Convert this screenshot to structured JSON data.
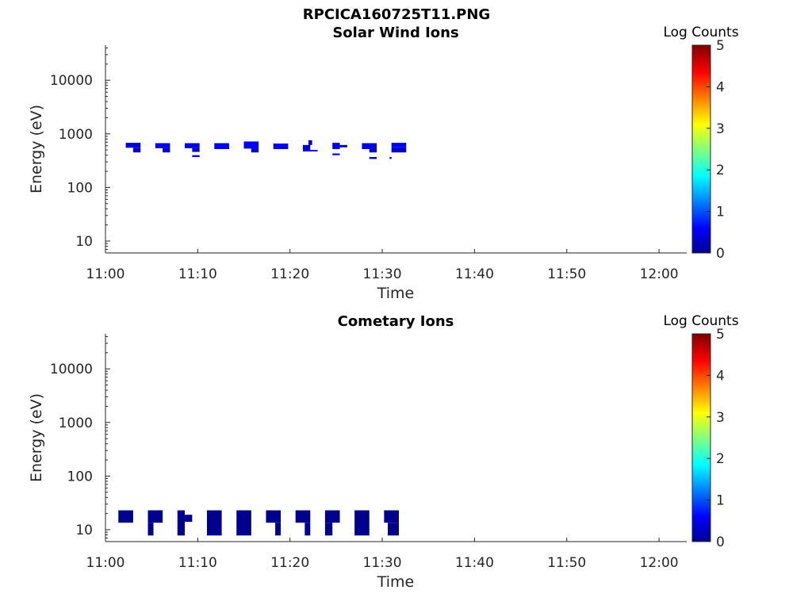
{
  "figure_title": "RPCICA160725T11.PNG",
  "colormap": [
    "#00008f",
    "#0000ff",
    "#00ffff",
    "#ffff00",
    "#ff0000",
    "#800000"
  ],
  "chart_data": [
    {
      "type": "heatmap",
      "title": "Solar Wind Ions",
      "xlabel": "Time",
      "ylabel": "Energy (eV)",
      "y_scale": "log",
      "xlim": [
        "11:00",
        "12:03"
      ],
      "ylim": [
        6,
        45000
      ],
      "x_ticks": [
        "11:00",
        "11:10",
        "11:20",
        "11:30",
        "11:40",
        "11:50",
        "12:00"
      ],
      "y_ticks": [
        "10",
        "100",
        "1000",
        "10000"
      ],
      "colorbar": {
        "label": "Log Counts",
        "range": [
          0,
          5
        ],
        "ticks": [
          "0",
          "1",
          "2",
          "3",
          "4",
          "5"
        ]
      },
      "cells": [
        {
          "t0": "11:02.2",
          "t1": "11:03.8",
          "e0": 550,
          "e1": 680,
          "level": 0.7
        },
        {
          "t0": "11:03.0",
          "t1": "11:03.8",
          "e0": 450,
          "e1": 550,
          "level": 0.6
        },
        {
          "t0": "11:05.4",
          "t1": "11:07.0",
          "e0": 540,
          "e1": 670,
          "level": 0.8
        },
        {
          "t0": "11:06.2",
          "t1": "11:07.0",
          "e0": 450,
          "e1": 540,
          "level": 0.6
        },
        {
          "t0": "11:08.6",
          "t1": "11:10.2",
          "e0": 540,
          "e1": 670,
          "level": 0.7
        },
        {
          "t0": "11:09.4",
          "t1": "11:10.2",
          "e0": 460,
          "e1": 540,
          "level": 0.6
        },
        {
          "t0": "11:09.4",
          "t1": "11:10.2",
          "e0": 370,
          "e1": 400,
          "level": 0.5
        },
        {
          "t0": "11:11.8",
          "t1": "11:13.4",
          "e0": 520,
          "e1": 670,
          "level": 0.9
        },
        {
          "t0": "11:15.0",
          "t1": "11:16.6",
          "e0": 530,
          "e1": 720,
          "level": 0.9
        },
        {
          "t0": "11:15.8",
          "t1": "11:16.6",
          "e0": 450,
          "e1": 530,
          "level": 0.6
        },
        {
          "t0": "11:18.2",
          "t1": "11:19.8",
          "e0": 520,
          "e1": 660,
          "level": 0.8
        },
        {
          "t0": "11:21.4",
          "t1": "11:22.2",
          "e0": 500,
          "e1": 620,
          "level": 0.6
        },
        {
          "t0": "11:22.0",
          "t1": "11:22.4",
          "e0": 620,
          "e1": 760,
          "level": 0.6
        },
        {
          "t0": "11:21.4",
          "t1": "11:23.0",
          "e0": 470,
          "e1": 500,
          "level": 0.5
        },
        {
          "t0": "11:24.6",
          "t1": "11:25.4",
          "e0": 520,
          "e1": 680,
          "level": 0.7
        },
        {
          "t0": "11:25.4",
          "t1": "11:26.2",
          "e0": 560,
          "e1": 620,
          "level": 0.6
        },
        {
          "t0": "11:24.6",
          "t1": "11:25.4",
          "e0": 400,
          "e1": 430,
          "level": 0.5
        },
        {
          "t0": "11:27.8",
          "t1": "11:29.4",
          "e0": 520,
          "e1": 670,
          "level": 0.7
        },
        {
          "t0": "11:28.6",
          "t1": "11:29.4",
          "e0": 450,
          "e1": 520,
          "level": 0.6
        },
        {
          "t0": "11:28.6",
          "t1": "11:29.4",
          "e0": 340,
          "e1": 370,
          "level": 0.5
        },
        {
          "t0": "11:31.0",
          "t1": "11:32.6",
          "e0": 560,
          "e1": 680,
          "level": 0.8
        },
        {
          "t0": "11:31.0",
          "t1": "11:32.6",
          "e0": 450,
          "e1": 560,
          "level": 0.6
        },
        {
          "t0": "11:30.8",
          "t1": "11:31.0",
          "e0": 340,
          "e1": 370,
          "level": 0.4
        }
      ]
    },
    {
      "type": "heatmap",
      "title": "Cometary Ions",
      "xlabel": "Time",
      "ylabel": "Energy (eV)",
      "y_scale": "log",
      "xlim": [
        "11:00",
        "12:03"
      ],
      "ylim": [
        6,
        45000
      ],
      "x_ticks": [
        "11:00",
        "11:10",
        "11:20",
        "11:30",
        "11:40",
        "11:50",
        "12:00"
      ],
      "y_ticks": [
        "10",
        "100",
        "1000",
        "10000"
      ],
      "colorbar": {
        "label": "Log Counts",
        "range": [
          0,
          5
        ],
        "ticks": [
          "0",
          "1",
          "2",
          "3",
          "4",
          "5"
        ]
      },
      "cells": [
        {
          "t0": "11:01.4",
          "t1": "11:03.0",
          "e0": 13.5,
          "e1": 23,
          "level": 0
        },
        {
          "t0": "11:04.6",
          "t1": "11:06.2",
          "e0": 13.5,
          "e1": 23,
          "level": 0
        },
        {
          "t0": "11:04.6",
          "t1": "11:05.2",
          "e0": 7.8,
          "e1": 13.5,
          "level": 0
        },
        {
          "t0": "11:07.8",
          "t1": "11:08.6",
          "e0": 7.8,
          "e1": 23,
          "level": 0
        },
        {
          "t0": "11:08.6",
          "t1": "11:09.4",
          "e0": 14,
          "e1": 19,
          "level": 0
        },
        {
          "t0": "11:11.0",
          "t1": "11:12.6",
          "e0": 7.8,
          "e1": 23,
          "level": 0
        },
        {
          "t0": "11:14.2",
          "t1": "11:15.8",
          "e0": 7.8,
          "e1": 23,
          "level": 0
        },
        {
          "t0": "11:17.4",
          "t1": "11:19.0",
          "e0": 13.5,
          "e1": 23,
          "level": 0
        },
        {
          "t0": "11:18.4",
          "t1": "11:19.0",
          "e0": 7.8,
          "e1": 13.5,
          "level": 0
        },
        {
          "t0": "11:20.6",
          "t1": "11:22.2",
          "e0": 13.5,
          "e1": 23,
          "level": 0
        },
        {
          "t0": "11:21.6",
          "t1": "11:22.2",
          "e0": 7.8,
          "e1": 13.5,
          "level": 0
        },
        {
          "t0": "11:23.8",
          "t1": "11:25.4",
          "e0": 13.5,
          "e1": 23,
          "level": 0
        },
        {
          "t0": "11:23.8",
          "t1": "11:24.6",
          "e0": 7.8,
          "e1": 13.5,
          "level": 0
        },
        {
          "t0": "11:27.0",
          "t1": "11:28.6",
          "e0": 7.8,
          "e1": 23,
          "level": 0
        },
        {
          "t0": "11:30.2",
          "t1": "11:31.8",
          "e0": 13.5,
          "e1": 23,
          "level": 0
        },
        {
          "t0": "11:30.6",
          "t1": "11:31.8",
          "e0": 7.8,
          "e1": 13.5,
          "level": 0
        }
      ]
    }
  ]
}
